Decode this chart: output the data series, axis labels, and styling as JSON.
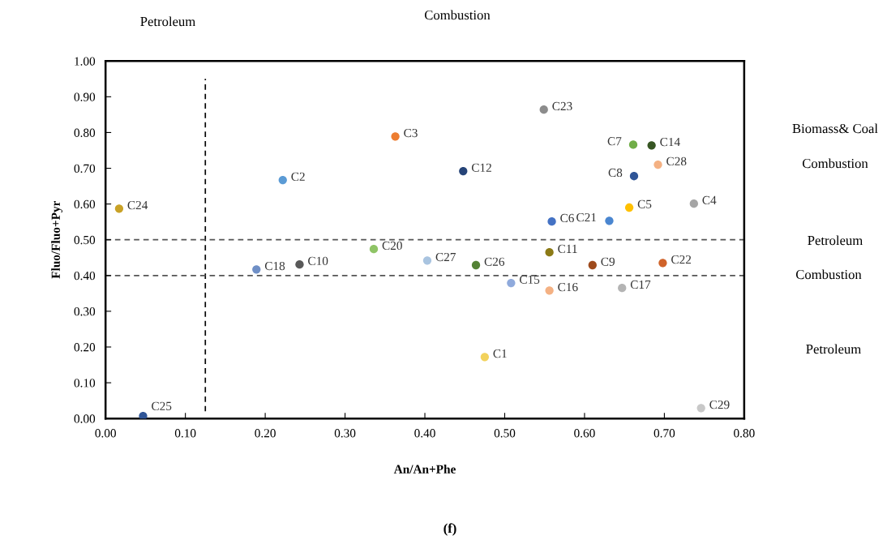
{
  "chart_data": {
    "type": "scatter",
    "xlabel": "An/An+Phe",
    "ylabel": "Fluo/Fluo+Pyr",
    "x": [
      0.017,
      0.222,
      0.363,
      0.448,
      0.549,
      0.661,
      0.684,
      0.692,
      0.662,
      0.656,
      0.737,
      0.559,
      0.631,
      0.336,
      0.403,
      0.464,
      0.556,
      0.61,
      0.698,
      0.508,
      0.556,
      0.647,
      0.475,
      0.746,
      0.047,
      0.189,
      0.243
    ],
    "values": [
      0.587,
      0.667,
      0.789,
      0.692,
      0.864,
      0.766,
      0.764,
      0.71,
      0.678,
      0.59,
      0.601,
      0.551,
      0.553,
      0.474,
      0.442,
      0.429,
      0.465,
      0.429,
      0.435,
      0.379,
      0.358,
      0.365,
      0.172,
      0.029,
      0.007,
      0.417,
      0.431
    ],
    "value_labels": [
      "C24",
      "C2",
      "C3",
      "C12",
      "C23",
      "C7",
      "C14",
      "C28",
      "C8",
      "C5",
      "C4",
      "C6",
      "C21",
      "C20",
      "C27",
      "C26",
      "C11",
      "C9",
      "C22",
      "C15",
      "C16",
      "C17",
      "C1",
      "C29",
      "C25",
      "C18",
      "C10"
    ],
    "colors": [
      "#c9a227",
      "#5b9bd5",
      "#ed7d31",
      "#264478",
      "#8c8c8c",
      "#70ad47",
      "#375623",
      "#f4b183",
      "#2f5597",
      "#ffc000",
      "#a5a5a5",
      "#4472c4",
      "#4a86d0",
      "#8fc466",
      "#a9c4e0",
      "#548235",
      "#8c7a16",
      "#9e4a1c",
      "#d0632a",
      "#8faadc",
      "#f4b183",
      "#b4b4b4",
      "#f2d25c",
      "#c8c8c8",
      "#2f5597",
      "#6f8fc6",
      "#595959"
    ],
    "marker": "circle",
    "grid": false,
    "legend": false,
    "xlim": [
      0,
      0.8
    ],
    "xticks": [
      {
        "value": 0,
        "label": "0.00"
      },
      {
        "value": 0.1,
        "label": "0.10"
      },
      {
        "value": 0.2,
        "label": "0.20"
      },
      {
        "value": 0.3,
        "label": "0.30"
      },
      {
        "value": 0.4,
        "label": "0.40"
      },
      {
        "value": 0.5,
        "label": "0.50"
      },
      {
        "value": 0.6,
        "label": "0.60"
      },
      {
        "value": 0.7,
        "label": "0.70"
      },
      {
        "value": 0.8,
        "label": "0.80"
      }
    ],
    "ylim": [
      0,
      1
    ],
    "yticks": [
      {
        "value": 0,
        "label": "0.00"
      },
      {
        "value": 0.1,
        "label": "0.10"
      },
      {
        "value": 0.2,
        "label": "0.20"
      },
      {
        "value": 0.3,
        "label": "0.30"
      },
      {
        "value": 0.4,
        "label": "0.40"
      },
      {
        "value": 0.5,
        "label": "0.50"
      },
      {
        "value": 0.6,
        "label": "0.60"
      },
      {
        "value": 0.7,
        "label": "0.70"
      },
      {
        "value": 0.8,
        "label": "0.80"
      },
      {
        "value": 0.9,
        "label": "0.90"
      },
      {
        "value": 1.0,
        "label": "1.00"
      }
    ],
    "ref_lines": [
      {
        "axis": "x",
        "value": 0.125,
        "color": "#000000",
        "line_style": "dashed"
      },
      {
        "axis": "y",
        "value": 0.5,
        "color": "#555555",
        "line_style": "dashed"
      },
      {
        "axis": "y",
        "value": 0.4,
        "color": "#555555",
        "line_style": "dashed"
      }
    ],
    "annotations": [
      "Petroleum",
      "Combustion",
      "Biomass& Coal",
      "Combustion",
      "Petroleum",
      "Combustion",
      "Petroleum",
      "(f)"
    ]
  }
}
